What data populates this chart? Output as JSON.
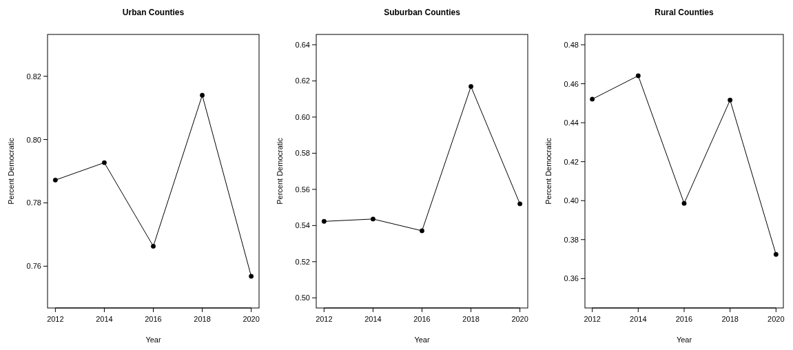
{
  "chart_data": [
    {
      "type": "line",
      "title": "Urban Counties",
      "xlabel": "Year",
      "ylabel": "Percent Democratic",
      "x": [
        2012,
        2014,
        2016,
        2018,
        2020
      ],
      "values": [
        0.7872,
        0.7927,
        0.7663,
        0.814,
        0.7568
      ],
      "color": "#000000",
      "marker": "circle",
      "line_style": "solid",
      "xlim": [
        2011.68,
        2020.32
      ],
      "xticks": [
        2012,
        2014,
        2016,
        2018,
        2020
      ],
      "ylim": [
        0.7468,
        0.8332
      ],
      "yticks": [
        {
          "value": 0.76,
          "label": "0.76"
        },
        {
          "value": 0.78,
          "label": "0.78"
        },
        {
          "value": 0.8,
          "label": "0.80"
        },
        {
          "value": 0.82,
          "label": "0.82"
        }
      ]
    },
    {
      "type": "line",
      "title": "Suburban Counties",
      "xlabel": "Year",
      "ylabel": "Percent Democratic",
      "x": [
        2012,
        2014,
        2016,
        2018,
        2020
      ],
      "values": [
        0.5423,
        0.5436,
        0.5371,
        0.6169,
        0.552
      ],
      "color": "#000000",
      "marker": "circle",
      "line_style": "solid",
      "xlim": [
        2011.68,
        2020.32
      ],
      "xticks": [
        2012,
        2014,
        2016,
        2018,
        2020
      ],
      "ylim": [
        0.4944,
        0.6457
      ],
      "yticks": [
        {
          "value": 0.5,
          "label": "0.50"
        },
        {
          "value": 0.52,
          "label": "0.52"
        },
        {
          "value": 0.54,
          "label": "0.54"
        },
        {
          "value": 0.56,
          "label": "0.56"
        },
        {
          "value": 0.58,
          "label": "0.58"
        },
        {
          "value": 0.6,
          "label": "0.60"
        },
        {
          "value": 0.62,
          "label": "0.62"
        },
        {
          "value": 0.64,
          "label": "0.64"
        }
      ]
    },
    {
      "type": "line",
      "title": "Rural Counties",
      "xlabel": "Year",
      "ylabel": "Percent Democratic",
      "x": [
        2012,
        2014,
        2016,
        2018,
        2020
      ],
      "values": [
        0.4521,
        0.4641,
        0.3986,
        0.4516,
        0.3724
      ],
      "color": "#000000",
      "marker": "circle",
      "line_style": "solid",
      "xlim": [
        2011.68,
        2020.32
      ],
      "xticks": [
        2012,
        2014,
        2016,
        2018,
        2020
      ],
      "ylim": [
        0.3449,
        0.4853
      ],
      "yticks": [
        {
          "value": 0.36,
          "label": "0.36"
        },
        {
          "value": 0.38,
          "label": "0.38"
        },
        {
          "value": 0.4,
          "label": "0.40"
        },
        {
          "value": 0.42,
          "label": "0.42"
        },
        {
          "value": 0.44,
          "label": "0.44"
        },
        {
          "value": 0.46,
          "label": "0.46"
        },
        {
          "value": 0.48,
          "label": "0.48"
        }
      ]
    }
  ]
}
